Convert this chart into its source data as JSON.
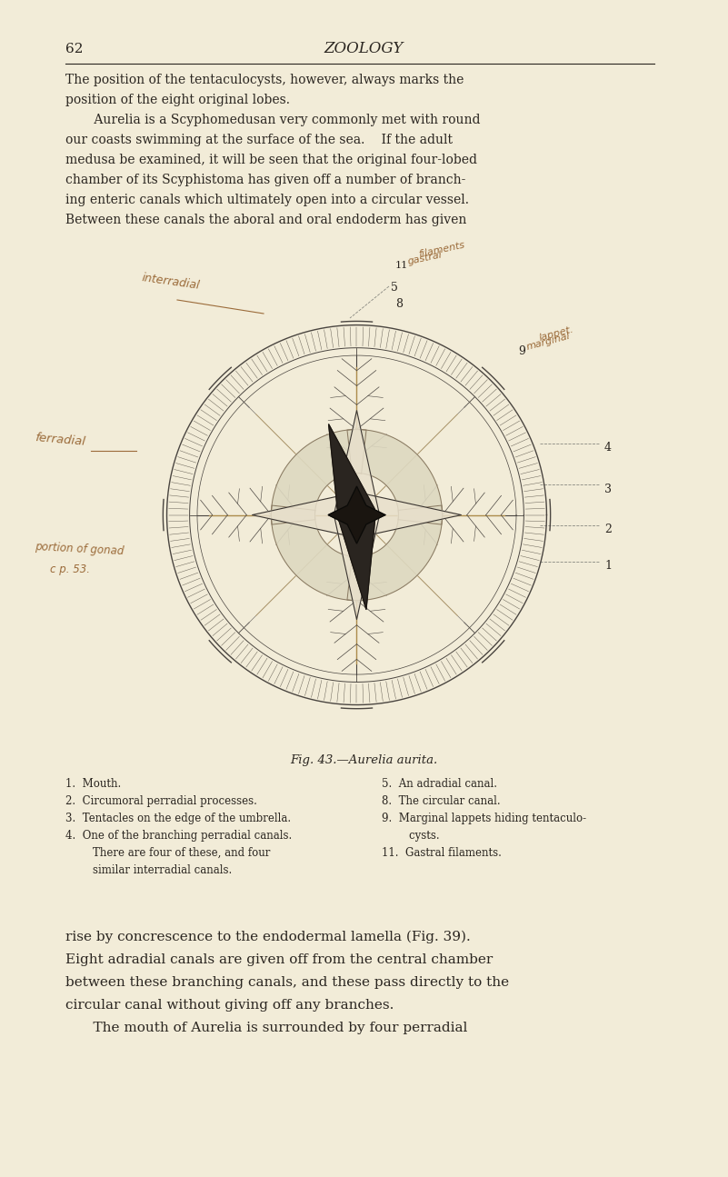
{
  "bg_color": "#f2ecd8",
  "page_number": "62",
  "header_title": "ZOOLOGY",
  "top_text_lines": [
    "The position of the tentaculocysts, however, always marks the",
    "position of the eight original lobes.",
    "     Aurelia is a Scyphomedusan very commonly met with round",
    "our coasts swimming at the surface of the sea.  If the adult",
    "medusa be examined, it will be seen that the original four-lobed",
    "chamber of its Scyphistoma has given off a number of branch-",
    "ing enteric canals which ultimately open into a circular vessel.",
    "Between these canals the aboral and oral endoderm has given"
  ],
  "caption": "Fig. 43.—Aurelia aurita.",
  "legend_left": [
    "1.  Mouth.",
    "2.  Circumoral perradial processes.",
    "3.  Tentacles on the edge of the umbrella.",
    "4.  One of the branching perradial canals.",
    "        There are four of these, and four",
    "        similar interradial canals."
  ],
  "legend_right": [
    "5.  An adradial canal.",
    "8.  The circular canal.",
    "9.  Marginal lappets hiding tentaculo-",
    "        cysts.",
    "11.  Gastral filaments."
  ],
  "bottom_text_lines": [
    "rise by concrescence to the endodermal lamella (Fig. 39).",
    "Eight adradial canals are given off from the central chamber",
    "between these branching canals, and these pass directly to the",
    "circular canal without giving off any branches.",
    "  The mouth of Aurelia is surrounded by four perradial"
  ],
  "text_color": "#2a2520",
  "hw_color": "#9b6b3a",
  "line_color": "#4a4540",
  "golden_color": "#c8a050"
}
